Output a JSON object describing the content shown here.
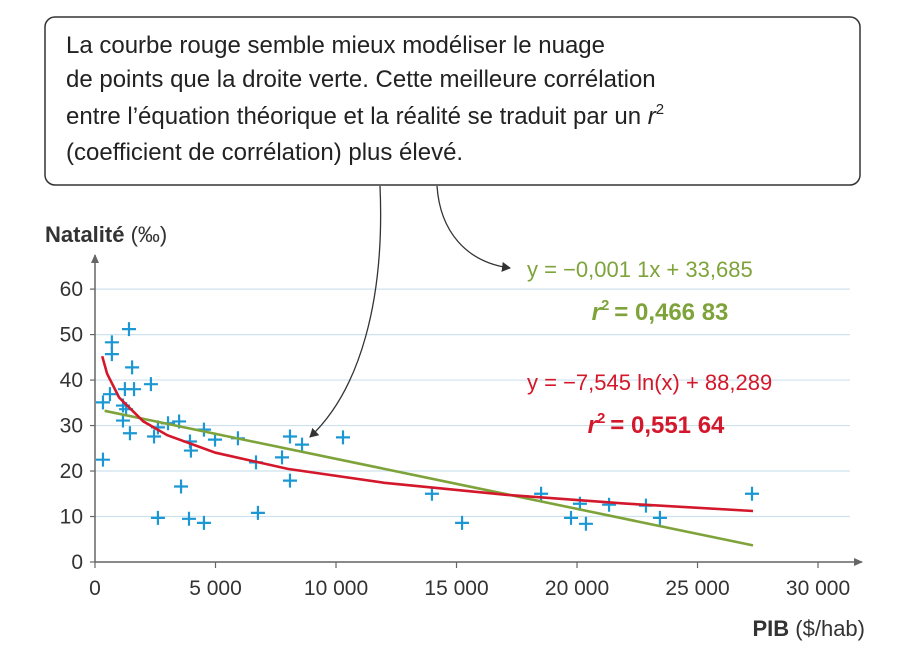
{
  "chart_data": {
    "type": "scatter",
    "callout": {
      "lines": [
        "La courbe rouge semble mieux modéliser le nuage",
        "de points que la droite verte. Cette meilleure corrélation",
        "entre l’équation théorique et la réalité se traduit par un",
        "(coefficient de corrélation) plus élevé."
      ]
    },
    "r2_symbol": {
      "base": "r",
      "exp": "2"
    },
    "y_label": "Natalité",
    "y_unit": "(‰)",
    "x_label": "PIB",
    "x_unit": "($/hab)",
    "xlim": [
      0,
      31700
    ],
    "ylim": [
      0,
      67.5
    ],
    "xticks": [
      0,
      {
        "value": 5000,
        "label": "5 000"
      },
      {
        "value": 10000,
        "label": "10 000"
      },
      {
        "value": 15000,
        "label": "15 000"
      },
      {
        "value": 20000,
        "label": "20 000"
      },
      {
        "value": 25000,
        "label": "25 000"
      },
      {
        "value": 30000,
        "label": "30 000"
      }
    ],
    "yticks": [
      0,
      10,
      20,
      30,
      40,
      50,
      60
    ],
    "grid": true,
    "series": [
      {
        "type": "scatter",
        "color": "#1b98d3",
        "x": [
          330,
          330,
          700,
          700,
          620,
          1410,
          1240,
          1160,
          1290,
          1160,
          1450,
          1540,
          1620,
          2320,
          2450,
          2610,
          2610,
          3030,
          3490,
          3570,
          3940,
          3980,
          3900,
          4520,
          4520,
          4980,
          5930,
          6680,
          6760,
          7760,
          8090,
          8090,
          8590,
          10290,
          13980,
          15230,
          18510,
          19750,
          20120,
          20370,
          21330,
          22860,
          23440,
          27260
        ],
        "values": [
          35.1,
          22.5,
          48.3,
          45.7,
          36.9,
          51.2,
          38.0,
          34.4,
          33.6,
          31.1,
          28.3,
          42.8,
          38.0,
          39.1,
          27.6,
          29.6,
          9.7,
          30.5,
          30.9,
          16.6,
          26.5,
          24.5,
          9.5,
          29.1,
          8.6,
          26.9,
          27.2,
          21.9,
          10.8,
          23.0,
          27.6,
          17.9,
          25.8,
          27.4,
          15.0,
          8.6,
          15.0,
          9.7,
          12.8,
          8.4,
          12.6,
          12.4,
          9.7,
          15.0
        ]
      },
      {
        "type": "line",
        "color": "#7ea33a",
        "x": [
          400,
          27300
        ],
        "values": [
          33.245,
          3.655
        ],
        "equation": "y = −0,001 1x + 33,685",
        "r2": "= 0,466 83"
      },
      {
        "type": "line",
        "color": "#d3182b",
        "x": [
          300,
          500,
          1000,
          2000,
          3000,
          5000,
          8000,
          12000,
          17000,
          22000,
          27300
        ],
        "values": [
          45.25,
          41.4,
          36.17,
          30.94,
          27.88,
          24.03,
          20.48,
          17.42,
          14.79,
          12.85,
          11.22
        ],
        "equation": "y = −7,545 ln(x) + 88,289",
        "r2": "= 0,551 64"
      }
    ]
  }
}
